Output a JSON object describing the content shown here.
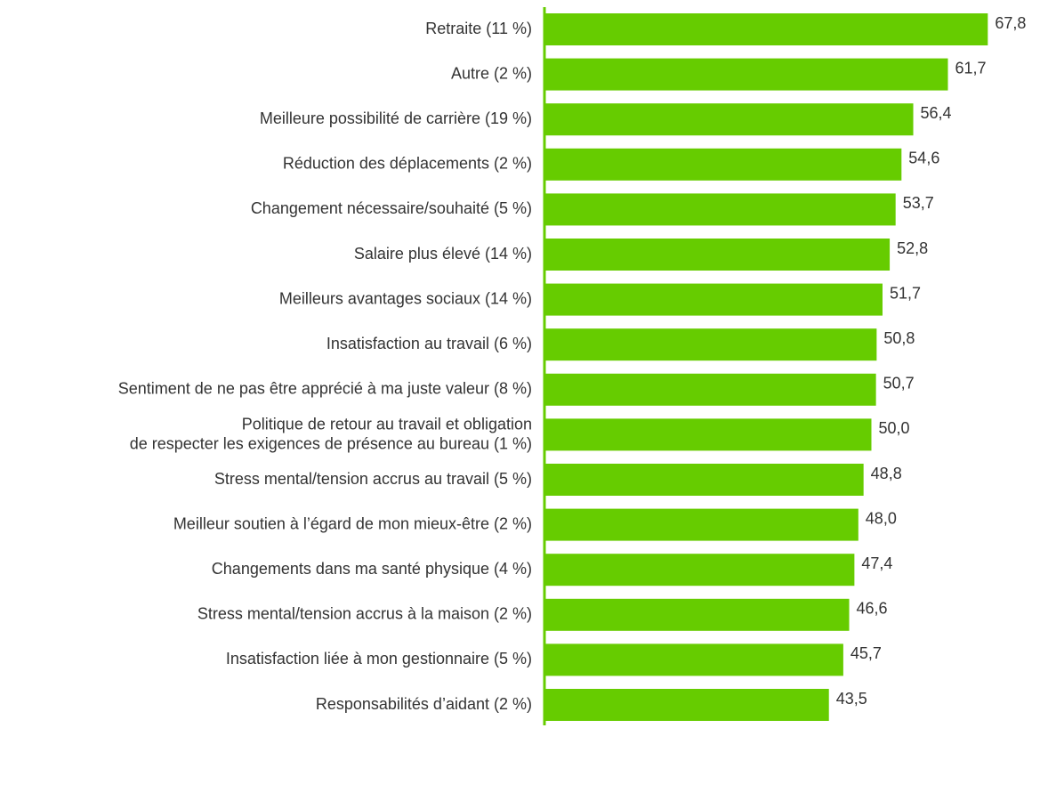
{
  "chart_data": {
    "type": "bar",
    "orientation": "horizontal",
    "color": "#66cc00",
    "categories": [
      "Retraite (11 %)",
      "Autre (2 %)",
      "Meilleure possibilité de carrière (19 %)",
      "Réduction des déplacements (2 %)",
      "Changement nécessaire/souhaité (5 %)",
      "Salaire plus élevé (14 %)",
      "Meilleurs avantages sociaux (14 %)",
      "Insatisfaction au travail (6 %)",
      "Sentiment de ne pas être apprécié à ma juste valeur (8 %)",
      "Politique de retour au travail et obligation\nde respecter les exigences de présence au bureau (1 %)",
      "Stress mental/tension accrus au travail (5 %)",
      "Meilleur soutien à l’égard de mon mieux-être (2 %)",
      "Changements dans ma santé physique (4 %)",
      "Stress mental/tension accrus à la maison (2 %)",
      "Insatisfaction liée à mon gestionnaire (5 %)",
      "Responsabilités d’aidant (2 %)"
    ],
    "values": [
      67.8,
      61.7,
      56.4,
      54.6,
      53.7,
      52.8,
      51.7,
      50.8,
      50.7,
      50.0,
      48.8,
      48.0,
      47.4,
      46.6,
      45.7,
      43.5
    ],
    "value_labels": [
      "67,8",
      "61,7",
      "56,4",
      "54,6",
      "53,7",
      "52,8",
      "51,7",
      "50,8",
      "50,7",
      "50,0",
      "48,8",
      "48,0",
      "47,4",
      "46,6",
      "45,7",
      "43,5"
    ]
  }
}
